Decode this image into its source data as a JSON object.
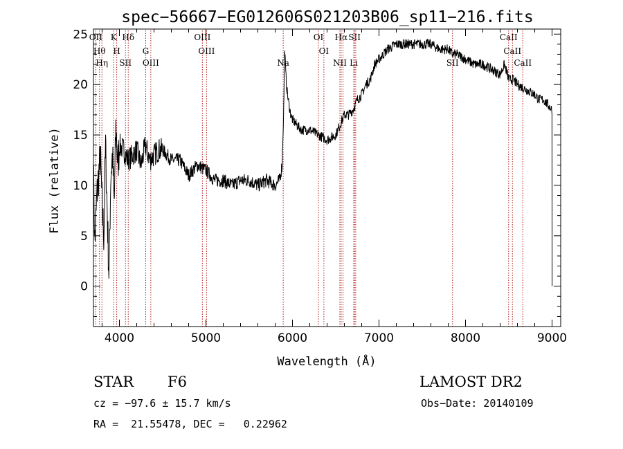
{
  "chart_data": {
    "type": "line",
    "title": "spec−56667−EG012606S021203B06_sp11−216.fits",
    "xlabel": "Wavelength (Å)",
    "ylabel": "Flux (relative)",
    "xlim": [
      3700,
      9100
    ],
    "ylim": [
      -4,
      25.5
    ],
    "x_ticks": [
      "4000",
      "5000",
      "6000",
      "7000",
      "8000",
      "9000"
    ],
    "y_ticks": [
      "0",
      "5",
      "10",
      "15",
      "20",
      "25"
    ],
    "series": [
      {
        "x": [
          3700,
          3715,
          3740,
          3760,
          3780,
          3800,
          3820,
          3840,
          3860,
          3880,
          3900,
          3920,
          3940,
          3960,
          3980,
          4000,
          4050,
          4100,
          4150,
          4200,
          4250,
          4300,
          4350,
          4400,
          4450,
          4500,
          4600,
          4700,
          4800,
          4900,
          5000,
          5100,
          5200,
          5300,
          5400,
          5500,
          5600,
          5700,
          5800,
          5850,
          5880,
          5900,
          5910,
          5920,
          5930,
          5950,
          5980,
          6000,
          6100,
          6200,
          6300,
          6400,
          6500,
          6550,
          6600,
          6650,
          6700,
          6750,
          6800,
          6850,
          6900,
          6950,
          7000,
          7100,
          7200,
          7300,
          7400,
          7500,
          7600,
          7700,
          7800,
          7850,
          7900,
          8000,
          8100,
          8200,
          8300,
          8400,
          8450,
          8500,
          8550,
          8600,
          8700,
          8800,
          8850,
          8900,
          8950,
          9000,
          9001
        ],
        "y": [
          12,
          4,
          9,
          11,
          13,
          8,
          5,
          14,
          7,
          1,
          11,
          13,
          8,
          16,
          12,
          14,
          13.5,
          12.5,
          13,
          13.5,
          12,
          14,
          12.5,
          13,
          13.5,
          13.5,
          12.5,
          12.5,
          11,
          12,
          11.5,
          10.5,
          10.5,
          10,
          10.5,
          10.5,
          10,
          10.5,
          10,
          10.5,
          12,
          18,
          24,
          21.5,
          20,
          18.5,
          17,
          16.5,
          15.5,
          15.5,
          15,
          14.5,
          15,
          16,
          17,
          17,
          17.5,
          18.5,
          19,
          20,
          20.5,
          22,
          22.5,
          23.5,
          24,
          24,
          24,
          24,
          24,
          23.5,
          23.5,
          23,
          23,
          22.5,
          22,
          22,
          21.5,
          21,
          22,
          20.5,
          20.5,
          20,
          19.5,
          19,
          18.5,
          18.5,
          18,
          17.5,
          0
        ]
      }
    ],
    "line_markers": [
      {
        "wl": 3727,
        "labels": [
          "OII"
        ]
      },
      {
        "wl": 3770,
        "labels": [
          "Hθ"
        ]
      },
      {
        "wl": 3798,
        "labels": [
          "Hη"
        ]
      },
      {
        "wl": 3934,
        "labels": [
          "K"
        ]
      },
      {
        "wl": 3969,
        "labels": [
          "H"
        ]
      },
      {
        "wl": 4070,
        "labels": [
          "SII"
        ]
      },
      {
        "wl": 4102,
        "labels": [
          "Hδ"
        ]
      },
      {
        "wl": 4304,
        "labels": [
          "G"
        ]
      },
      {
        "wl": 4363,
        "labels": [
          "OIII"
        ]
      },
      {
        "wl": 4959,
        "labels": [
          "OIII"
        ]
      },
      {
        "wl": 5007,
        "labels": [
          "OIII"
        ]
      },
      {
        "wl": 5893,
        "labels": [
          "Na"
        ]
      },
      {
        "wl": 6300,
        "labels": [
          "OI"
        ]
      },
      {
        "wl": 6363,
        "labels": [
          "OI"
        ]
      },
      {
        "wl": 6548,
        "labels": [
          "NII"
        ]
      },
      {
        "wl": 6563,
        "labels": [
          "Hα"
        ]
      },
      {
        "wl": 6584,
        "labels": []
      },
      {
        "wl": 6708,
        "labels": [
          "Li"
        ]
      },
      {
        "wl": 6717,
        "labels": [
          "SII"
        ]
      },
      {
        "wl": 6731,
        "labels": []
      },
      {
        "wl": 7850,
        "labels": [
          "SII"
        ]
      },
      {
        "wl": 8498,
        "labels": [
          "CaII"
        ]
      },
      {
        "wl": 8542,
        "labels": [
          "CaII"
        ]
      },
      {
        "wl": 8662,
        "labels": [
          "CaII"
        ]
      }
    ],
    "grid": false
  },
  "info": {
    "object_class": "STAR",
    "subclass": "F6",
    "survey": "LAMOST DR2",
    "cz": "cz = −97.6 ± 15.7 km/s",
    "obs_date": "Obs−Date: 20140109",
    "radec": "RA =  21.55478, DEC =   0.22962"
  }
}
